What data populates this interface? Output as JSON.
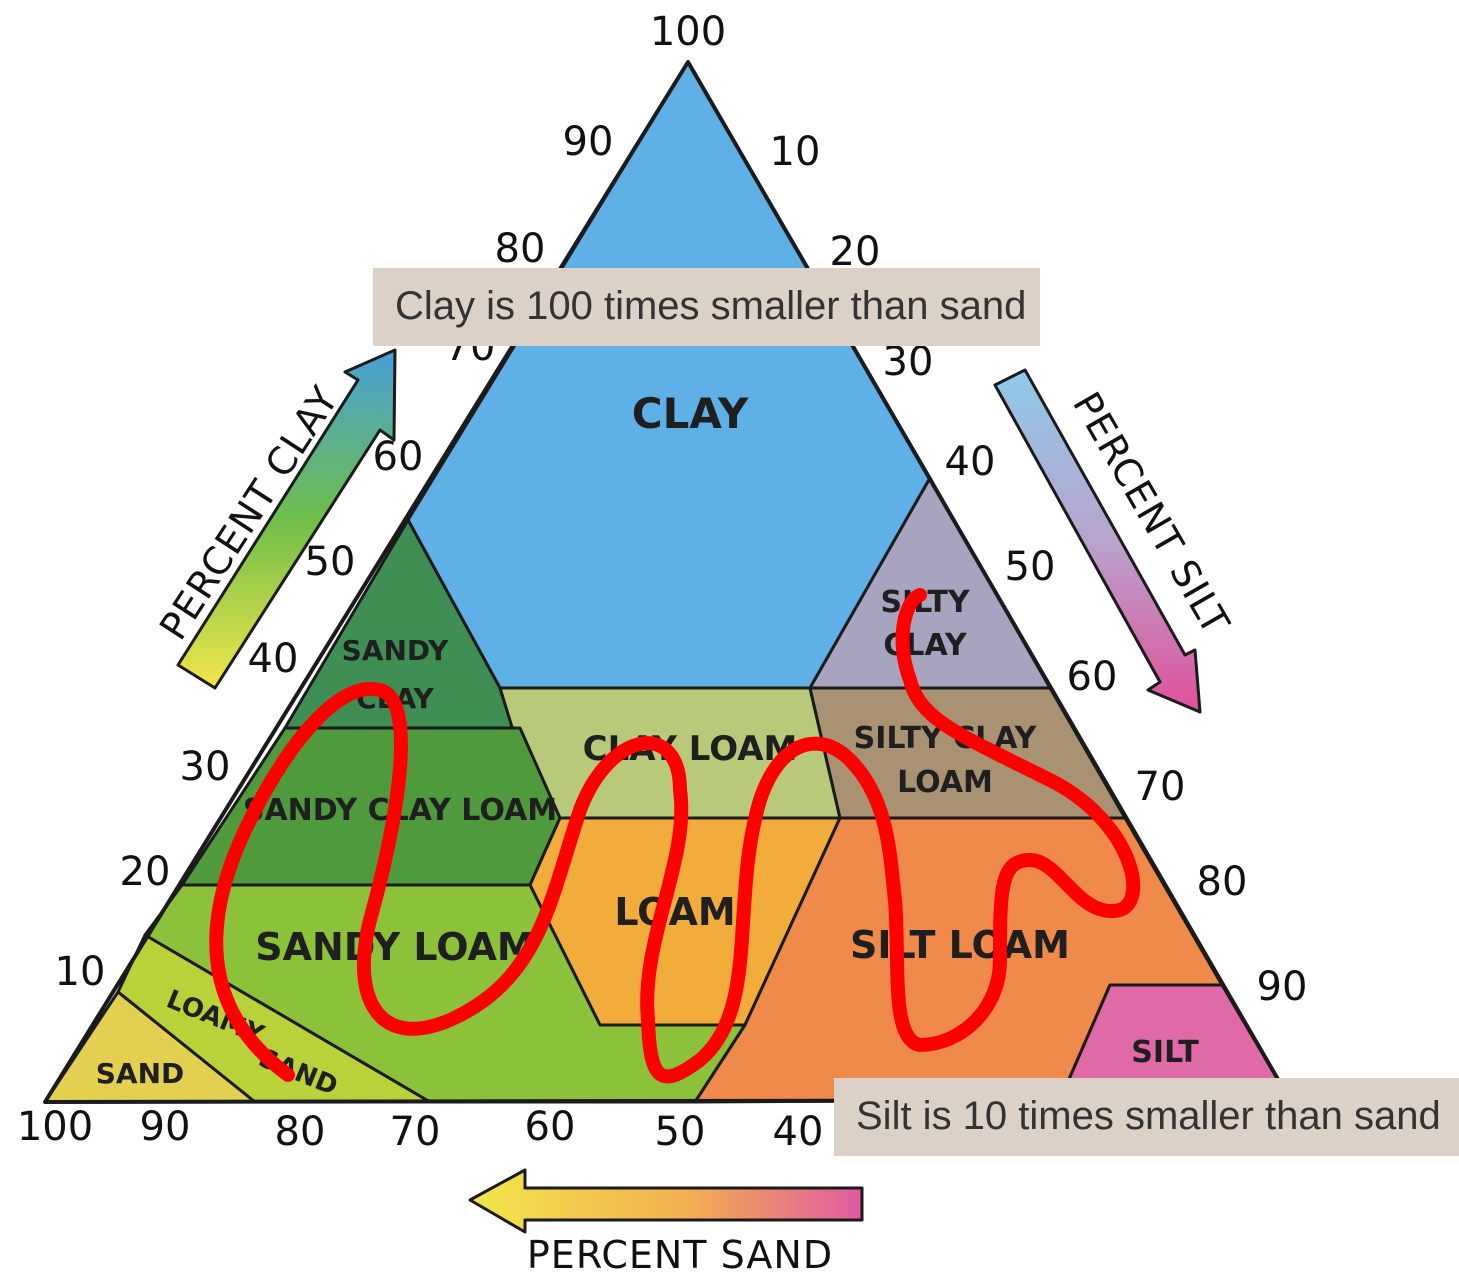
{
  "diagram": {
    "apex_label": "100",
    "clay_axis": {
      "title": "PERCENT CLAY",
      "ticks": [
        "90",
        "80",
        "70",
        "60",
        "50",
        "40",
        "30",
        "20",
        "10"
      ]
    },
    "silt_axis": {
      "title": "PERCENT SILT",
      "ticks": [
        "10",
        "20",
        "30",
        "40",
        "50",
        "60",
        "70",
        "80",
        "90"
      ]
    },
    "sand_axis": {
      "title": "PERCENT SAND",
      "ticks": [
        "100",
        "90",
        "80",
        "70",
        "60",
        "50",
        "40"
      ]
    },
    "zones": {
      "clay": "CLAY",
      "sandy_clay_1": "SANDY",
      "sandy_clay_2": "CLAY",
      "silty_clay_1": "SILTY",
      "silty_clay_2": "CLAY",
      "clay_loam": "CLAY LOAM",
      "silty_clay_loam_1": "SILTY CLAY",
      "silty_clay_loam_2": "LOAM",
      "sandy_clay_loam": "SANDY CLAY LOAM",
      "loam": "LOAM",
      "sandy_loam": "SANDY LOAM",
      "silt_loam": "SILT LOAM",
      "loamy_sand_1": "LOAMY",
      "loamy_sand_2": "SAND",
      "sand": "SAND",
      "silt": "SILT"
    },
    "colors": {
      "clay": "#5fb0e6",
      "sandy_clay": "#3f8f55",
      "silty_clay": "#a8a4c0",
      "clay_loam": "#b9c97a",
      "silty_clay_loam": "#a89272",
      "sandy_clay_loam": "#4f9a3c",
      "loam": "#f2ac3c",
      "sandy_loam": "#8cc23a",
      "silt_loam": "#f08a4a",
      "loamy_sand": "#b9d23a",
      "sand": "#e4d050",
      "silt": "#e06aa8",
      "scribble": "#ff0000",
      "caption_bg": "#dcd1c6"
    }
  },
  "annotations": {
    "clay_caption": "Clay is 100 times smaller than sand",
    "silt_caption": "Silt is 10 times smaller than sand"
  }
}
